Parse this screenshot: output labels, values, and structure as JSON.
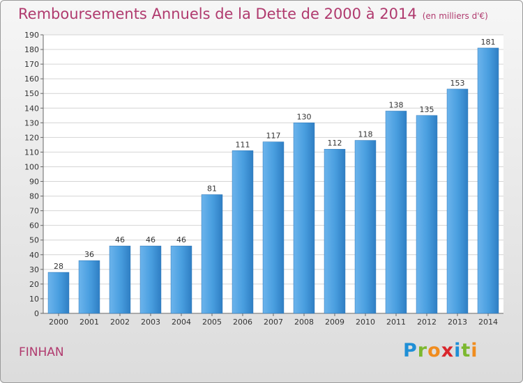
{
  "title": "Remboursements Annuels de la Dette de 2000 à 2014",
  "subtitle": "(en milliers d'€)",
  "commune": "FINHAN",
  "logo": {
    "letters": [
      "P",
      "r",
      "o",
      "x",
      "i",
      "t",
      "i"
    ],
    "colors": [
      "#1f8fd6",
      "#7cb82f",
      "#f08c1e",
      "#d9262c",
      "#1f8fd6",
      "#7cb82f",
      "#f08c1e"
    ]
  },
  "colors": {
    "bar": "#4a9fe0",
    "bar_dark": "#2f7fc4",
    "title": "#b03a6e"
  },
  "chart_data": {
    "type": "bar",
    "title": "Remboursements Annuels de la Dette de 2000 à 2014",
    "xlabel": "",
    "ylabel": "",
    "categories": [
      "2000",
      "2001",
      "2002",
      "2003",
      "2004",
      "2005",
      "2006",
      "2007",
      "2008",
      "2009",
      "2010",
      "2011",
      "2012",
      "2013",
      "2014"
    ],
    "values": [
      28,
      36,
      46,
      46,
      46,
      81,
      111,
      117,
      130,
      112,
      118,
      138,
      135,
      153,
      181
    ],
    "ylim": [
      0,
      190
    ],
    "yticks": [
      0,
      10,
      20,
      30,
      40,
      50,
      60,
      70,
      80,
      90,
      100,
      110,
      120,
      130,
      140,
      150,
      160,
      170,
      180,
      190
    ],
    "grid": true
  }
}
